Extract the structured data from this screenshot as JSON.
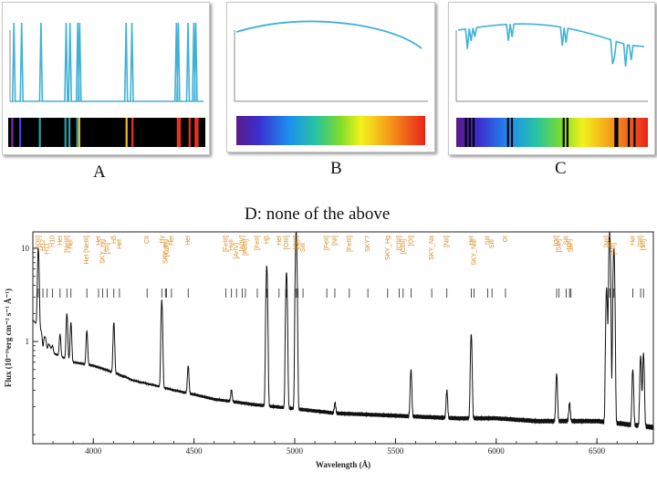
{
  "options": [
    {
      "label": "A",
      "kind": "emission",
      "line_positions": [
        0.02,
        0.06,
        0.16,
        0.29,
        0.31,
        0.35,
        0.36,
        0.6,
        0.63,
        0.86,
        0.87,
        0.92,
        0.95,
        0.96
      ]
    },
    {
      "label": "B",
      "kind": "continuous"
    },
    {
      "label": "C",
      "kind": "absorption",
      "line_positions": [
        0.05,
        0.07,
        0.09,
        0.27,
        0.29,
        0.56,
        0.58,
        0.83,
        0.84,
        0.9,
        0.93
      ]
    }
  ],
  "option_d": "D: none of the above",
  "chart_data": {
    "type": "line",
    "xlabel": "Wavelength (Å)",
    "ylabel": "Flux (10⁻¹⁶erg cm⁻² s⁻¹ Å⁻¹)",
    "xlim": [
      3700,
      6780
    ],
    "xticks": [
      4000,
      4500,
      5000,
      5500,
      6000,
      6500
    ],
    "ylog": true,
    "ylim": [
      0.08,
      15
    ],
    "yticks": [
      {
        "value": 1,
        "label": "1"
      },
      {
        "value": 10,
        "label": "10"
      }
    ],
    "continuum": [
      [
        3700,
        1.7
      ],
      [
        3800,
        0.75
      ],
      [
        3900,
        0.6
      ],
      [
        4000,
        0.55
      ],
      [
        4200,
        0.38
      ],
      [
        4400,
        0.3
      ],
      [
        4600,
        0.24
      ],
      [
        4800,
        0.21
      ],
      [
        5000,
        0.19
      ],
      [
        5200,
        0.17
      ],
      [
        5500,
        0.16
      ],
      [
        5800,
        0.15
      ],
      [
        6000,
        0.15
      ],
      [
        6200,
        0.14
      ],
      [
        6500,
        0.14
      ],
      [
        6780,
        0.12
      ]
    ],
    "emission_lines": [
      {
        "x": 3727,
        "peak": 10
      },
      {
        "x": 3750,
        "peak": 0.9
      },
      {
        "x": 3771,
        "peak": 0.85
      },
      {
        "x": 3798,
        "peak": 0.9
      },
      {
        "x": 3835,
        "peak": 1.2
      },
      {
        "x": 3869,
        "peak": 2.0
      },
      {
        "x": 3889,
        "peak": 1.6
      },
      {
        "x": 3968,
        "peak": 1.3
      },
      {
        "x": 4102,
        "peak": 1.6
      },
      {
        "x": 4340,
        "peak": 2.8
      },
      {
        "x": 4471,
        "peak": 0.55
      },
      {
        "x": 4686,
        "peak": 0.3
      },
      {
        "x": 4861,
        "peak": 6.5
      },
      {
        "x": 4959,
        "peak": 5.5
      },
      {
        "x": 5007,
        "peak": 15
      },
      {
        "x": 5200,
        "peak": 0.22
      },
      {
        "x": 5577,
        "peak": 0.5
      },
      {
        "x": 5755,
        "peak": 0.3
      },
      {
        "x": 5876,
        "peak": 1.2
      },
      {
        "x": 6300,
        "peak": 0.45
      },
      {
        "x": 6364,
        "peak": 0.22
      },
      {
        "x": 6548,
        "peak": 3.8
      },
      {
        "x": 6563,
        "peak": 15
      },
      {
        "x": 6584,
        "peak": 10
      },
      {
        "x": 6678,
        "peak": 0.5
      },
      {
        "x": 6717,
        "peak": 0.7
      },
      {
        "x": 6731,
        "peak": 0.75
      }
    ],
    "line_ids": [
      {
        "x": 3727,
        "text": "[OII]"
      },
      {
        "x": 3750,
        "text": "H12"
      },
      {
        "x": 3771,
        "text": "H11"
      },
      {
        "x": 3798,
        "text": "H10"
      },
      {
        "x": 3835,
        "text": "HeI"
      },
      {
        "x": 3869,
        "text": "[NeIII]"
      },
      {
        "x": 3889,
        "text": "HeI"
      },
      {
        "x": 3968,
        "text": "HeI [NeIII]"
      },
      {
        "x": 4026,
        "text": "HeI"
      },
      {
        "x": 4047,
        "text": "SKY_Hg"
      },
      {
        "x": 4069,
        "text": "[SII]"
      },
      {
        "x": 4102,
        "text": "Hδ"
      },
      {
        "x": 4130,
        "text": "HeI"
      },
      {
        "x": 4267,
        "text": "CII"
      },
      {
        "x": 4340,
        "text": "Hγ"
      },
      {
        "x": 4358,
        "text": "SKY_Hg"
      },
      {
        "x": 4363,
        "text": "[OIII]"
      },
      {
        "x": 4388,
        "text": "HeI"
      },
      {
        "x": 4471,
        "text": "HeI"
      },
      {
        "x": 4658,
        "text": "[FeIII]"
      },
      {
        "x": 4686,
        "text": "HeII"
      },
      {
        "x": 4711,
        "text": "[ArIV]"
      },
      {
        "x": 4740,
        "text": "[ArIV]"
      },
      {
        "x": 4755,
        "text": "[FeIII]"
      },
      {
        "x": 4814,
        "text": "[FeII]"
      },
      {
        "x": 4861,
        "text": "Hβ"
      },
      {
        "x": 4922,
        "text": "HeI"
      },
      {
        "x": 4959,
        "text": "[OIII]"
      },
      {
        "x": 5007,
        "text": "[OIII]"
      },
      {
        "x": 5016,
        "text": "HeI"
      },
      {
        "x": 5041,
        "text": "SiII"
      },
      {
        "x": 5159,
        "text": "[FeII]"
      },
      {
        "x": 5199,
        "text": "[NI]"
      },
      {
        "x": 5271,
        "text": "[FeIII]"
      },
      {
        "x": 5363,
        "text": "SKY?"
      },
      {
        "x": 5461,
        "text": "SKY_Hg"
      },
      {
        "x": 5518,
        "text": "[ClIII]"
      },
      {
        "x": 5538,
        "text": "[ClIII]"
      },
      {
        "x": 5577,
        "text": "[OI]"
      },
      {
        "x": 5680,
        "text": "SKY_Na"
      },
      {
        "x": 5755,
        "text": "[NII]"
      },
      {
        "x": 5876,
        "text": "HeI"
      },
      {
        "x": 5890,
        "text": "SKY_NaI"
      },
      {
        "x": 5958,
        "text": "SiII"
      },
      {
        "x": 5979,
        "text": "SiII"
      },
      {
        "x": 6046,
        "text": "OI"
      },
      {
        "x": 6300,
        "text": "[OI]"
      },
      {
        "x": 6312,
        "text": "[SIII]"
      },
      {
        "x": 6347,
        "text": "SiII"
      },
      {
        "x": 6364,
        "text": "[OI]"
      },
      {
        "x": 6371,
        "text": "SiII"
      },
      {
        "x": 6548,
        "text": "[NII]"
      },
      {
        "x": 6563,
        "text": "Hα"
      },
      {
        "x": 6584,
        "text": "[NII]"
      },
      {
        "x": 6678,
        "text": "HeI"
      },
      {
        "x": 6717,
        "text": "[SII]"
      },
      {
        "x": 6731,
        "text": "[SII]"
      }
    ]
  }
}
